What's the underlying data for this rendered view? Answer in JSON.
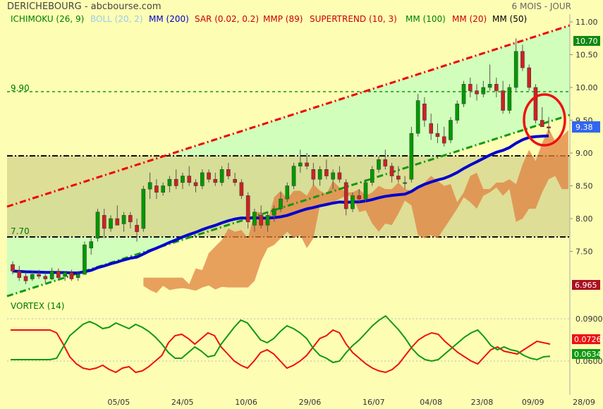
{
  "header": {
    "title": "DERICHEBOURG - abcbourse.com",
    "period": "6 MOIS - JOUR"
  },
  "legend": [
    {
      "label": "ICHIMOKU (26, 9)",
      "color": "#008000"
    },
    {
      "label": "BOLL (20, 2)",
      "color": "#99ccee"
    },
    {
      "label": "MM (200)",
      "color": "#0000cc"
    },
    {
      "label": "SAR (0.02, 0.2)",
      "color": "#cc0000"
    },
    {
      "label": "MMP (89)",
      "color": "#cc0000"
    },
    {
      "label": "SUPERTREND (10, 3)",
      "color": "#cc0000"
    },
    {
      "label": "MM (100)",
      "color": "#008000"
    },
    {
      "label": "MM (20)",
      "color": "#cc0000"
    },
    {
      "label": "MM (50)",
      "color": "#000000"
    }
  ],
  "level_labels": {
    "upper": "9.90",
    "lower": "7.70"
  },
  "price_badges": {
    "high": "10.70",
    "last": "9.38",
    "low": "6.965"
  },
  "vortex": {
    "title": "VORTEX (14)",
    "badge_red": "0.0726",
    "badge_green": "0.0634"
  },
  "colors": {
    "background": "#fdfdb4",
    "bull_candle": "#009900",
    "bear_candle": "#cc2222",
    "mm200": "#0000cc",
    "channel_red": "#ee0000",
    "channel_green": "#119911",
    "cloud": "#e08040",
    "zone_fill": "#d8d890",
    "green_zone": "#ccffbb"
  },
  "chart_data": [
    {
      "type": "candlestick",
      "title": "",
      "yaxis": {
        "ticks": [
          "7.50",
          "8.00",
          "8.50",
          "9.00",
          "9.50",
          "10.00",
          "10.50",
          "11.00"
        ],
        "range": [
          7.0,
          11.05
        ]
      },
      "xaxis": {
        "ticks": [
          "05/05",
          "24/05",
          "10/06",
          "29/06",
          "16/07",
          "04/08",
          "23/08",
          "09/09",
          "28/09"
        ]
      },
      "ohlc": [
        [
          7.3,
          7.35,
          7.15,
          7.2
        ],
        [
          7.2,
          7.28,
          7.05,
          7.1
        ],
        [
          7.12,
          7.18,
          7.0,
          7.05
        ],
        [
          7.08,
          7.2,
          7.05,
          7.15
        ],
        [
          7.15,
          7.22,
          7.08,
          7.12
        ],
        [
          7.12,
          7.18,
          7.02,
          7.08
        ],
        [
          7.08,
          7.25,
          7.06,
          7.2
        ],
        [
          7.2,
          7.24,
          7.05,
          7.1
        ],
        [
          7.12,
          7.2,
          7.05,
          7.18
        ],
        [
          7.18,
          7.22,
          7.05,
          7.08
        ],
        [
          7.1,
          7.2,
          7.05,
          7.15
        ],
        [
          7.15,
          7.65,
          7.15,
          7.6
        ],
        [
          7.55,
          7.7,
          7.45,
          7.65
        ],
        [
          7.7,
          8.15,
          7.65,
          8.1
        ],
        [
          8.05,
          8.15,
          7.7,
          7.85
        ],
        [
          7.85,
          8.05,
          7.8,
          8.0
        ],
        [
          8.0,
          8.2,
          7.9,
          7.9
        ],
        [
          7.92,
          8.1,
          7.8,
          8.05
        ],
        [
          8.05,
          8.1,
          7.85,
          7.95
        ],
        [
          7.9,
          8.0,
          7.65,
          7.8
        ],
        [
          7.85,
          8.5,
          7.8,
          8.45
        ],
        [
          8.45,
          8.7,
          8.3,
          8.55
        ],
        [
          8.5,
          8.6,
          8.3,
          8.4
        ],
        [
          8.4,
          8.55,
          8.35,
          8.5
        ],
        [
          8.5,
          8.65,
          8.4,
          8.6
        ],
        [
          8.6,
          8.75,
          8.45,
          8.5
        ],
        [
          8.55,
          8.7,
          8.45,
          8.65
        ],
        [
          8.65,
          8.8,
          8.5,
          8.55
        ],
        [
          8.55,
          8.6,
          8.4,
          8.5
        ],
        [
          8.5,
          8.75,
          8.45,
          8.7
        ],
        [
          8.7,
          8.75,
          8.55,
          8.6
        ],
        [
          8.6,
          8.7,
          8.5,
          8.55
        ],
        [
          8.55,
          8.8,
          8.5,
          8.75
        ],
        [
          8.75,
          8.85,
          8.6,
          8.65
        ],
        [
          8.6,
          8.7,
          8.5,
          8.55
        ],
        [
          8.55,
          8.6,
          8.3,
          8.35
        ],
        [
          8.35,
          8.4,
          7.85,
          7.95
        ],
        [
          7.9,
          8.15,
          7.8,
          8.1
        ],
        [
          8.05,
          8.2,
          7.85,
          7.9
        ],
        [
          7.9,
          8.1,
          7.8,
          8.05
        ],
        [
          8.05,
          8.2,
          7.95,
          8.15
        ],
        [
          8.15,
          8.4,
          8.1,
          8.3
        ],
        [
          8.3,
          8.55,
          8.25,
          8.5
        ],
        [
          8.5,
          8.85,
          8.45,
          8.8
        ],
        [
          8.8,
          9.05,
          8.7,
          8.85
        ],
        [
          8.85,
          9.0,
          8.75,
          8.8
        ],
        [
          8.75,
          8.85,
          8.5,
          8.6
        ],
        [
          8.6,
          8.8,
          8.5,
          8.75
        ],
        [
          8.75,
          8.9,
          8.6,
          8.65
        ],
        [
          8.6,
          8.75,
          8.45,
          8.7
        ],
        [
          8.7,
          8.8,
          8.55,
          8.6
        ],
        [
          8.55,
          8.6,
          8.05,
          8.15
        ],
        [
          8.15,
          8.4,
          8.1,
          8.35
        ],
        [
          8.35,
          8.45,
          8.25,
          8.3
        ],
        [
          8.3,
          8.6,
          8.25,
          8.55
        ],
        [
          8.55,
          8.8,
          8.5,
          8.75
        ],
        [
          8.75,
          8.95,
          8.7,
          8.9
        ],
        [
          8.9,
          9.05,
          8.75,
          8.8
        ],
        [
          8.8,
          8.85,
          8.55,
          8.65
        ],
        [
          8.65,
          8.8,
          8.55,
          8.6
        ],
        [
          8.55,
          8.65,
          8.45,
          8.55
        ],
        [
          8.6,
          9.4,
          8.55,
          9.3
        ],
        [
          9.3,
          9.9,
          9.25,
          9.8
        ],
        [
          9.75,
          9.85,
          9.4,
          9.5
        ],
        [
          9.45,
          9.6,
          9.2,
          9.3
        ],
        [
          9.3,
          9.45,
          9.15,
          9.25
        ],
        [
          9.25,
          9.4,
          9.1,
          9.15
        ],
        [
          9.2,
          9.55,
          9.15,
          9.5
        ],
        [
          9.5,
          9.8,
          9.45,
          9.75
        ],
        [
          9.75,
          10.1,
          9.7,
          10.05
        ],
        [
          10.05,
          10.15,
          9.85,
          9.95
        ],
        [
          9.95,
          10.05,
          9.8,
          9.9
        ],
        [
          9.9,
          10.1,
          9.85,
          10.0
        ],
        [
          10.0,
          10.35,
          9.95,
          10.05
        ],
        [
          10.05,
          10.15,
          9.85,
          9.95
        ],
        [
          9.95,
          10.1,
          9.6,
          9.65
        ],
        [
          9.65,
          10.05,
          9.6,
          10.0
        ],
        [
          10.0,
          10.75,
          9.95,
          10.55
        ],
        [
          10.55,
          10.65,
          10.25,
          10.3
        ],
        [
          10.3,
          10.35,
          9.95,
          10.0
        ],
        [
          10.0,
          10.05,
          9.45,
          9.5
        ],
        [
          9.5,
          9.7,
          9.4,
          9.4
        ],
        [
          9.4,
          9.55,
          9.3,
          9.38
        ]
      ]
    },
    {
      "type": "line",
      "title": "VORTEX (14)",
      "yaxis": {
        "ticks": [
          "0.0600",
          "0.0900"
        ],
        "range": [
          0.05,
          0.095
        ]
      },
      "series": [
        {
          "name": "",
          "color": "#ee1111",
          "values": [
            0.082,
            0.082,
            0.082,
            0.082,
            0.082,
            0.082,
            0.082,
            0.08,
            0.072,
            0.063,
            0.058,
            0.055,
            0.054,
            0.055,
            0.057,
            0.054,
            0.052,
            0.055,
            0.056,
            0.052,
            0.053,
            0.056,
            0.06,
            0.064,
            0.073,
            0.078,
            0.079,
            0.076,
            0.072,
            0.076,
            0.08,
            0.078,
            0.07,
            0.065,
            0.06,
            0.057,
            0.055,
            0.06,
            0.066,
            0.068,
            0.065,
            0.06,
            0.055,
            0.057,
            0.06,
            0.064,
            0.07,
            0.076,
            0.078,
            0.082,
            0.08,
            0.072,
            0.066,
            0.062,
            0.058,
            0.055,
            0.053,
            0.052,
            0.054,
            0.058,
            0.064,
            0.07,
            0.075,
            0.078,
            0.08,
            0.079,
            0.074,
            0.07,
            0.066,
            0.063,
            0.06,
            0.058,
            0.063,
            0.068,
            0.07,
            0.067,
            0.066,
            0.065,
            0.068,
            0.071,
            0.074,
            0.073,
            0.072
          ]
        },
        {
          "name": "",
          "color": "#119911",
          "values": [
            0.061,
            0.061,
            0.061,
            0.061,
            0.061,
            0.061,
            0.061,
            0.062,
            0.07,
            0.078,
            0.082,
            0.086,
            0.088,
            0.086,
            0.083,
            0.084,
            0.087,
            0.085,
            0.083,
            0.086,
            0.084,
            0.081,
            0.077,
            0.072,
            0.066,
            0.062,
            0.062,
            0.066,
            0.07,
            0.067,
            0.063,
            0.064,
            0.072,
            0.078,
            0.084,
            0.089,
            0.087,
            0.081,
            0.075,
            0.073,
            0.076,
            0.081,
            0.085,
            0.083,
            0.08,
            0.076,
            0.069,
            0.064,
            0.062,
            0.059,
            0.06,
            0.066,
            0.071,
            0.075,
            0.08,
            0.085,
            0.089,
            0.092,
            0.087,
            0.082,
            0.076,
            0.069,
            0.064,
            0.061,
            0.06,
            0.061,
            0.065,
            0.069,
            0.073,
            0.077,
            0.08,
            0.082,
            0.077,
            0.071,
            0.068,
            0.07,
            0.068,
            0.067,
            0.064,
            0.062,
            0.061,
            0.063,
            0.0634
          ]
        }
      ]
    }
  ]
}
